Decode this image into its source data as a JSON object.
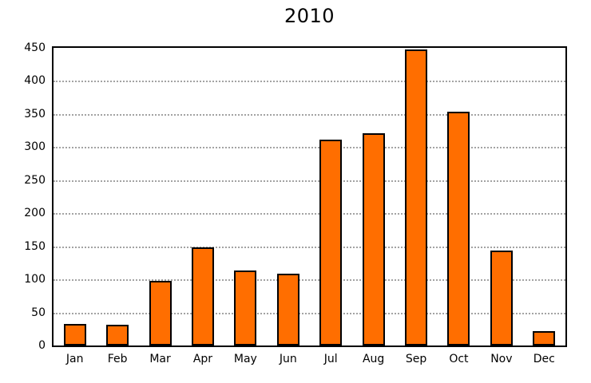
{
  "chart_data": {
    "type": "bar",
    "title": "2010",
    "categories": [
      "Jan",
      "Feb",
      "Mar",
      "Apr",
      "May",
      "Jun",
      "Jul",
      "Aug",
      "Sep",
      "Oct",
      "Nov",
      "Dec"
    ],
    "values": [
      33,
      31,
      98,
      148,
      113,
      108,
      311,
      321,
      448,
      353,
      144,
      22
    ],
    "xlabel": "",
    "ylabel": "",
    "ylim": [
      0,
      450
    ],
    "ytick_step": 50,
    "ytick_labels": [
      "0",
      "50",
      "100",
      "150",
      "200",
      "250",
      "300",
      "350",
      "400",
      "450"
    ],
    "grid": "horizontal-dotted",
    "legend": "none"
  },
  "colors": {
    "bar_fill": "#FF6E00",
    "bar_border": "#000000",
    "gridline": "#A3A3A3",
    "axis_frame": "#000000",
    "background": "#FFFFFF",
    "text": "#000000"
  }
}
